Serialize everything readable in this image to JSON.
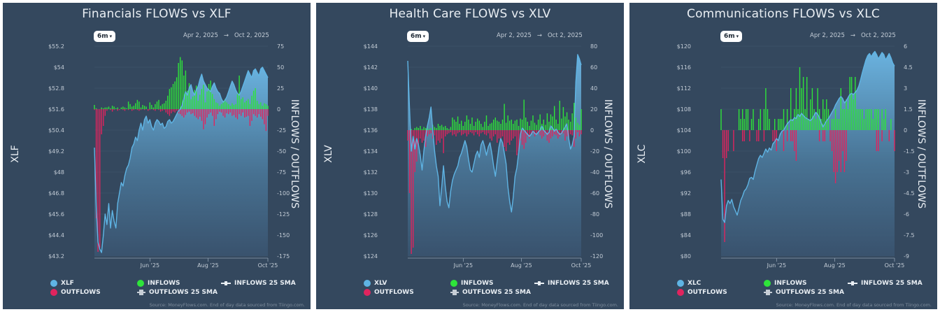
{
  "panels": [
    {
      "title": "Financials FLOWS vs XLF",
      "range_button": "6m",
      "date_start": "Apr 2, 2025",
      "date_sep": "→",
      "date_end": "Oct 2, 2025",
      "left_axis_title": "XLF",
      "right_axis_title": "INFLOWS / OUTFLOWS",
      "legend": {
        "price": "XLF",
        "outflows": "OUTFLOWS",
        "inflows": "INFLOWS",
        "outflows_sma": "OUTFLOWS 25 SMA",
        "inflows_sma": "INFLOWS 25 SMA"
      },
      "source": "Source: MoneyFlows.com. End of day data sourced from Tiingo.com."
    },
    {
      "title": "Health Care FLOWS vs XLV",
      "range_button": "6m",
      "date_start": "Apr 2, 2025",
      "date_sep": "→",
      "date_end": "Oct 2, 2025",
      "left_axis_title": "XLV",
      "right_axis_title": "INFLOWS / OUTFLOWS",
      "legend": {
        "price": "XLV",
        "outflows": "OUTFLOWS",
        "inflows": "INFLOWS",
        "outflows_sma": "OUTFLOWS 25 SMA",
        "inflows_sma": "INFLOWS 25 SMA"
      },
      "source": "Source: MoneyFlows.com. End of day data sourced from Tiingo.com."
    },
    {
      "title": "Communications FLOWS vs XLC",
      "range_button": "6m",
      "date_start": "Apr 2, 2025",
      "date_sep": "→",
      "date_end": "Oct 2, 2025",
      "left_axis_title": "XLC",
      "right_axis_title": "INFLOWS / OUTFLOWS",
      "legend": {
        "price": "XLC",
        "outflows": "OUTFLOWS",
        "inflows": "INFLOWS",
        "outflows_sma": "OUTFLOWS 25 SMA",
        "inflows_sma": "INFLOWS 25 SMA"
      },
      "source": "Source: MoneyFlows.com. End of day data sourced from Tiingo.com."
    }
  ],
  "colors": {
    "background": "#34485e",
    "price_line": "#5fb4e4",
    "inflows": "#2ee43a",
    "outflows": "#e0245e",
    "text": "#e9eef3",
    "tick_text": "#c3ccd6"
  },
  "chart_data": [
    {
      "type": "line+bar",
      "title": "Financials FLOWS vs XLF",
      "ylabel_left": "XLF",
      "ylabel_right": "INFLOWS / OUTFLOWS",
      "x_ticks": [
        "Jun '25",
        "Aug '25",
        "Oct '25"
      ],
      "x_tick_positions": [
        0.32,
        0.655,
        1.0
      ],
      "y_left_ticks": [
        "$55.2",
        "$54",
        "$52.8",
        "$51.6",
        "$50.4",
        "$49.2",
        "$48",
        "$46.8",
        "$45.6",
        "$44.4",
        "$43.2"
      ],
      "y_left_range": [
        43.2,
        55.2
      ],
      "y_right_ticks": [
        "75",
        "50",
        "25",
        "0",
        "-25",
        "-50",
        "-75",
        "-100",
        "-125",
        "-150",
        "-175"
      ],
      "y_right_range": [
        -175,
        75
      ],
      "price": [
        49.4,
        46.0,
        44.0,
        43.6,
        43.4,
        44.4,
        45.6,
        45.0,
        46.2,
        44.8,
        45.8,
        45.2,
        44.8,
        46.2,
        46.8,
        47.4,
        47.2,
        47.8,
        48.2,
        48.4,
        48.8,
        49.4,
        49.6,
        50.0,
        49.8,
        50.4,
        50.8,
        50.4,
        51.0,
        51.2,
        50.8,
        51.0,
        50.6,
        50.4,
        50.8,
        51.0,
        50.9,
        50.7,
        50.8,
        50.5,
        50.6,
        50.9,
        51.0,
        50.8,
        50.9,
        51.1,
        51.3,
        51.5,
        51.6,
        51.8,
        52.2,
        52.6,
        52.4,
        52.8,
        53.0,
        52.6,
        52.4,
        52.7,
        52.9,
        53.3,
        53.6,
        53.2,
        53.0,
        52.8,
        52.7,
        52.6,
        52.9,
        53.1,
        52.8,
        52.6,
        52.5,
        52.2,
        52.0,
        52.1,
        52.3,
        52.6,
        52.9,
        53.2,
        53.0,
        52.7,
        52.5,
        52.4,
        52.6,
        52.9,
        53.2,
        53.5,
        53.8,
        53.6,
        53.4,
        53.8,
        53.9,
        53.7,
        53.5,
        53.9,
        54.0,
        53.8,
        53.6,
        53.4
      ],
      "inflows": [
        5,
        1,
        0,
        0,
        2,
        1,
        2,
        2,
        3,
        1,
        4,
        3,
        1,
        2,
        0,
        2,
        3,
        2,
        1,
        9,
        6,
        3,
        4,
        7,
        11,
        9,
        2,
        5,
        4,
        3,
        0,
        8,
        5,
        2,
        6,
        9,
        11,
        4,
        6,
        7,
        10,
        16,
        24,
        26,
        30,
        33,
        38,
        55,
        62,
        58,
        40,
        46,
        22,
        31,
        12,
        15,
        23,
        28,
        10,
        17,
        24,
        29,
        8,
        21,
        30,
        34,
        18,
        12,
        8,
        7,
        4,
        6,
        10,
        12,
        8,
        6,
        4,
        7,
        5,
        6,
        18,
        40,
        12,
        14,
        8,
        10,
        12,
        6,
        16,
        22,
        25,
        10,
        6,
        8,
        4,
        7,
        6,
        4
      ],
      "outflows": [
        -1,
        -130,
        -170,
        -165,
        -30,
        -20,
        -8,
        -2,
        0,
        -1,
        -3,
        -1,
        0,
        -2,
        -1,
        0,
        -1,
        -2,
        0,
        -1,
        0,
        -2,
        -1,
        0,
        -1,
        -2,
        -1,
        0,
        -1,
        0,
        -2,
        -1,
        0,
        -1,
        -2,
        0,
        -1,
        -3,
        -2,
        -1,
        -4,
        -6,
        -8,
        -5,
        -3,
        -4,
        -2,
        -5,
        -6,
        -8,
        -10,
        -7,
        -4,
        -3,
        -6,
        -5,
        -8,
        -10,
        -12,
        -9,
        -14,
        -24,
        -18,
        -10,
        -6,
        -4,
        -8,
        -20,
        -12,
        -6,
        -3,
        -4,
        -8,
        -10,
        -5,
        -6,
        -4,
        -8,
        -7,
        -10,
        -12,
        -6,
        -8,
        -4,
        -10,
        -9,
        -8,
        -20,
        -14,
        -6,
        -8,
        -10,
        -6,
        -9,
        -12,
        -18,
        -26,
        -8
      ]
    },
    {
      "type": "line+bar",
      "title": "Health Care FLOWS vs XLV",
      "ylabel_left": "XLV",
      "ylabel_right": "INFLOWS / OUTFLOWS",
      "x_ticks": [
        "Jun '25",
        "Aug '25",
        "Oct '25"
      ],
      "x_tick_positions": [
        0.32,
        0.655,
        1.0
      ],
      "y_left_ticks": [
        "$144",
        "$142",
        "$140",
        "$138",
        "$136",
        "$134",
        "$132",
        "$130",
        "$128",
        "$126",
        "$124"
      ],
      "y_left_range": [
        124,
        144
      ],
      "y_right_ticks": [
        "80",
        "60",
        "40",
        "20",
        "0",
        "-20",
        "-40",
        "-60",
        "-80",
        "-100",
        "-120"
      ],
      "y_right_range": [
        -120,
        80
      ],
      "price": [
        142.6,
        138.0,
        134.0,
        135.4,
        134.2,
        135.2,
        134.6,
        133.6,
        132.2,
        134.0,
        135.4,
        136.4,
        137.2,
        138.2,
        136.0,
        134.0,
        132.6,
        131.6,
        128.8,
        130.6,
        132.6,
        130.6,
        129.2,
        128.6,
        130.2,
        131.2,
        131.8,
        132.2,
        132.6,
        133.4,
        133.8,
        134.4,
        135.0,
        134.4,
        133.2,
        132.2,
        132.0,
        132.8,
        133.6,
        134.0,
        133.4,
        134.6,
        135.0,
        134.4,
        133.6,
        134.4,
        134.8,
        133.8,
        132.6,
        131.6,
        133.0,
        134.4,
        135.2,
        134.8,
        133.8,
        132.8,
        130.6,
        129.2,
        128.2,
        129.6,
        131.6,
        132.4,
        133.8,
        135.6,
        136.2,
        136.0,
        135.8,
        135.6,
        135.4,
        135.6,
        135.9,
        135.7,
        135.6,
        135.8,
        136.0,
        136.4,
        136.0,
        135.8,
        135.6,
        135.8,
        136.4,
        136.2,
        135.9,
        136.1,
        135.8,
        135.6,
        135.7,
        136.0,
        136.3,
        136.6,
        135.2,
        134.2,
        134.6,
        135.4,
        140.6,
        143.2,
        142.8,
        142.2
      ],
      "inflows": [
        0,
        0,
        1,
        0,
        2,
        3,
        2,
        4,
        1,
        3,
        2,
        4,
        1,
        2,
        5,
        3,
        2,
        6,
        4,
        5,
        3,
        4,
        2,
        1,
        3,
        12,
        10,
        8,
        13,
        6,
        9,
        4,
        8,
        14,
        10,
        6,
        12,
        4,
        8,
        11,
        9,
        6,
        3,
        8,
        14,
        4,
        6,
        7,
        10,
        12,
        9,
        8,
        6,
        10,
        25,
        7,
        14,
        9,
        10,
        6,
        9,
        10,
        4,
        11,
        10,
        29,
        12,
        8,
        4,
        9,
        14,
        7,
        5,
        10,
        15,
        6,
        10,
        5,
        16,
        8,
        15,
        13,
        23,
        10,
        6,
        28,
        11,
        22,
        13,
        17,
        10,
        8,
        16,
        26,
        12,
        7,
        5,
        20
      ],
      "outflows": [
        -10,
        -60,
        -118,
        -112,
        -40,
        -30,
        -15,
        -8,
        -12,
        -10,
        -16,
        -6,
        -4,
        -3,
        -8,
        -5,
        -14,
        -10,
        -12,
        -8,
        -22,
        -6,
        -4,
        -3,
        -2,
        -5,
        -4,
        -6,
        -3,
        -2,
        -5,
        -4,
        -3,
        -6,
        -4,
        -2,
        -3,
        -5,
        -2,
        -4,
        -6,
        -3,
        -2,
        -4,
        -5,
        -3,
        -8,
        -10,
        -6,
        -4,
        -12,
        -8,
        -10,
        -6,
        -16,
        -20,
        -12,
        -14,
        -10,
        -8,
        -6,
        -24,
        -20,
        -10,
        -14,
        -18,
        -12,
        -6,
        -8,
        -4,
        -3,
        -6,
        -4,
        -2,
        -5,
        -8,
        -6,
        -4,
        -10,
        -12,
        -8,
        -6,
        -4,
        -5,
        -8,
        -6,
        -4,
        -3,
        -10,
        -6,
        -8,
        -4,
        -5,
        -16,
        -8,
        -2,
        -6,
        -4
      ]
    },
    {
      "type": "line+bar",
      "title": "Communications FLOWS vs XLC",
      "ylabel_left": "XLC",
      "ylabel_right": "INFLOWS / OUTFLOWS",
      "x_ticks": [
        "Jun '25",
        "Aug '25",
        "Oct '25"
      ],
      "x_tick_positions": [
        0.32,
        0.655,
        1.0
      ],
      "y_left_ticks": [
        "$120",
        "$116",
        "$112",
        "$108",
        "$104",
        "$100",
        "$96",
        "$92",
        "$88",
        "$84",
        "$80"
      ],
      "y_left_range": [
        80,
        120
      ],
      "y_right_ticks": [
        "6",
        "4.5",
        "3",
        "1.5",
        "0",
        "-1.5",
        "-3",
        "-4.5",
        "-6",
        "-7.5",
        "-9"
      ],
      "y_right_range": [
        -9,
        6
      ],
      "price": [
        94.6,
        87.0,
        86.4,
        89.6,
        90.6,
        90.0,
        90.8,
        89.4,
        88.6,
        87.8,
        89.2,
        90.6,
        91.4,
        92.4,
        92.8,
        93.6,
        94.8,
        95.0,
        94.6,
        96.2,
        97.4,
        98.6,
        99.2,
        98.8,
        99.6,
        100.4,
        99.8,
        100.6,
        100.2,
        101.4,
        101.8,
        102.4,
        102.0,
        103.2,
        103.8,
        104.0,
        104.6,
        105.2,
        105.6,
        106.0,
        105.8,
        106.4,
        106.2,
        107.0,
        106.6,
        107.2,
        106.8,
        106.4,
        106.2,
        106.0,
        105.8,
        106.2,
        106.8,
        107.4,
        107.0,
        106.4,
        105.4,
        104.6,
        105.2,
        105.8,
        106.2,
        106.8,
        107.4,
        108.0,
        108.8,
        109.4,
        110.0,
        110.4,
        110.0,
        109.2,
        109.6,
        110.2,
        110.8,
        111.0,
        110.8,
        111.2,
        111.6,
        112.4,
        113.6,
        115.0,
        116.2,
        117.4,
        118.2,
        118.6,
        118.0,
        118.6,
        119.0,
        118.4,
        117.6,
        118.2,
        118.8,
        118.4,
        117.4,
        118.0,
        118.6,
        117.8,
        116.8,
        116.2
      ],
      "inflows": [
        1.5,
        0,
        0,
        0,
        0,
        0,
        0,
        0,
        0,
        0,
        1.5,
        0.8,
        1.5,
        0.8,
        1.5,
        1.5,
        0,
        0.8,
        1.5,
        0,
        0,
        0.8,
        1.5,
        0,
        1.5,
        3,
        1.5,
        0.8,
        0,
        0,
        0.8,
        0,
        0.8,
        0.8,
        0.8,
        1.5,
        0,
        1.5,
        0,
        3,
        0.8,
        1.5,
        3,
        1.5,
        4.5,
        3,
        3.8,
        1.5,
        3.8,
        0.8,
        2.2,
        3,
        1.5,
        0.8,
        3,
        1.5,
        0.8,
        2.2,
        1.5,
        2.2,
        1.5,
        0,
        0.8,
        0.8,
        1.5,
        0.8,
        0.8,
        3,
        1.5,
        1.5,
        2.2,
        1.5,
        3.8,
        3.8,
        2.2,
        3.8,
        1.5,
        1.5,
        1.5,
        1.5,
        0.8,
        1.5,
        1.5,
        1.5,
        1.5,
        0.8,
        1.5,
        1.5,
        1.5,
        0,
        1.5,
        0.8,
        1.5,
        0,
        0,
        0.8,
        0,
        0
      ],
      "outflows": [
        0,
        -2,
        -8,
        -2,
        -1.5,
        0,
        0,
        -1.5,
        0,
        0,
        0,
        0,
        -0.8,
        -0.8,
        0,
        0,
        -0.8,
        0,
        0,
        0,
        -0.8,
        -0.8,
        0,
        0,
        -0.8,
        0,
        0,
        0,
        0,
        -0.8,
        -0.8,
        -1.5,
        0,
        0,
        0,
        -1.5,
        0,
        -0.8,
        0,
        -0.8,
        -0.8,
        -1.5,
        -2.2,
        0,
        0,
        0,
        0,
        0,
        0,
        0,
        0,
        0,
        0,
        0,
        0,
        -0.8,
        0,
        -0.8,
        -0.8,
        0,
        0,
        -0.8,
        -1.5,
        -3,
        -3.8,
        -3,
        -2.2,
        -3,
        -1.5,
        -3,
        -2.2,
        0,
        0,
        0,
        0,
        0,
        0,
        0,
        0,
        0,
        0,
        0,
        0,
        0,
        0,
        0,
        0,
        -1.5,
        -1.5,
        0,
        -0.8,
        0,
        0,
        0,
        -0.8,
        0,
        0,
        -1.5
      ]
    }
  ]
}
